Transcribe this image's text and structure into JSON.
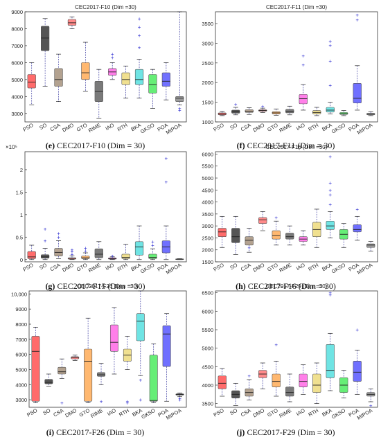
{
  "captions": [
    {
      "tag": "(e)",
      "text": "CEC2017-F10 (Dim = 30)"
    },
    {
      "tag": "(f)",
      "text": "CEC2017-F11 (Dim = 30)"
    },
    {
      "tag": "(g)",
      "text": "CEC2017-F15 (Dim = 30)"
    },
    {
      "tag": "(h)",
      "text": "CEC2017-F16 (Dim = 30)"
    },
    {
      "tag": "(i)",
      "text": "CEC2017-F26 (Dim = 30)"
    },
    {
      "tag": "(j)",
      "text": "CEC2017-F29 (Dim = 30)"
    }
  ],
  "colors": [
    "#ff6b6b",
    "#555555",
    "#b3a290",
    "#ff8a8a",
    "#ffb870",
    "#7a7a7a",
    "#ff7fe9",
    "#f0e090",
    "#6fe4e4",
    "#66ee77",
    "#7070ff",
    "#9a9a9a"
  ],
  "chart_data": [
    {
      "type": "box",
      "title": "CEC2017-F10 (Dim =30)",
      "categories": [
        "PSO",
        "SO",
        "CSA",
        "DMO",
        "GTO",
        "RIME",
        "IAO",
        "RTH",
        "BKA",
        "GKSO",
        "POA",
        "MIPOA"
      ],
      "ylim": [
        2500,
        9000
      ],
      "yticks": [
        3000,
        4000,
        5000,
        6000,
        7000,
        8000,
        9000
      ],
      "ytick_labels": [
        "3000",
        "4000",
        "5000",
        "6000",
        "7000",
        "8000",
        "9000"
      ],
      "boxes": [
        {
          "min": 3500,
          "q1": 4500,
          "median": 4850,
          "q3": 5300,
          "max": 6000,
          "outliers": []
        },
        {
          "min": 4600,
          "q1": 6700,
          "median": 7450,
          "q3": 8150,
          "max": 8600,
          "outliers": []
        },
        {
          "min": 3700,
          "q1": 4600,
          "median": 5000,
          "q3": 5650,
          "max": 6500,
          "outliers": []
        },
        {
          "min": 8000,
          "q1": 8200,
          "median": 8350,
          "q3": 8550,
          "max": 8700,
          "outliers": []
        },
        {
          "min": 4300,
          "q1": 5000,
          "median": 5400,
          "q3": 6000,
          "max": 7200,
          "outliers": []
        },
        {
          "min": 2700,
          "q1": 3700,
          "median": 4300,
          "q3": 4900,
          "max": 5600,
          "outliers": []
        },
        {
          "min": 5000,
          "q1": 5250,
          "median": 5450,
          "q3": 5650,
          "max": 6000,
          "outliers": [
            6300,
            6500
          ]
        },
        {
          "min": 3900,
          "q1": 4700,
          "median": 5000,
          "q3": 5400,
          "max": 5800,
          "outliers": []
        },
        {
          "min": 3900,
          "q1": 4700,
          "median": 5000,
          "q3": 5600,
          "max": 6200,
          "outliers": [
            6900,
            7600,
            8100,
            8600
          ]
        },
        {
          "min": 3300,
          "q1": 4200,
          "median": 4700,
          "q3": 5300,
          "max": 5600,
          "outliers": []
        },
        {
          "min": 3800,
          "q1": 4600,
          "median": 4900,
          "q3": 5400,
          "max": 6000,
          "outliers": []
        },
        {
          "min": 3500,
          "q1": 3700,
          "median": 3900,
          "q3": 4000,
          "max": 9000,
          "outliers": [
            3300,
            3200
          ]
        }
      ]
    },
    {
      "type": "box",
      "title": "CEC2017-F11 (Dim =30)",
      "categories": [
        "PSO",
        "SO",
        "CSA",
        "DMO",
        "GTO",
        "RIME",
        "IAO",
        "RTH",
        "BKA",
        "GKSO",
        "POA",
        "MIPOA"
      ],
      "ylim": [
        1000,
        3800
      ],
      "yticks": [
        1000,
        1500,
        2000,
        2500,
        3000,
        3500
      ],
      "ytick_labels": [
        "1000",
        "1500",
        "2000",
        "2500",
        "3000",
        "3500"
      ],
      "boxes": [
        {
          "min": 1160,
          "q1": 1180,
          "median": 1200,
          "q3": 1230,
          "max": 1270,
          "outliers": []
        },
        {
          "min": 1180,
          "q1": 1220,
          "median": 1260,
          "q3": 1300,
          "max": 1370,
          "outliers": [
            1450
          ]
        },
        {
          "min": 1190,
          "q1": 1240,
          "median": 1270,
          "q3": 1310,
          "max": 1360,
          "outliers": []
        },
        {
          "min": 1240,
          "q1": 1270,
          "median": 1290,
          "q3": 1310,
          "max": 1350,
          "outliers": [
            1400
          ]
        },
        {
          "min": 1170,
          "q1": 1200,
          "median": 1230,
          "q3": 1260,
          "max": 1330,
          "outliers": []
        },
        {
          "min": 1180,
          "q1": 1230,
          "median": 1270,
          "q3": 1320,
          "max": 1400,
          "outliers": []
        },
        {
          "min": 1300,
          "q1": 1460,
          "median": 1590,
          "q3": 1700,
          "max": 1950,
          "outliers": [
            2450,
            2680
          ]
        },
        {
          "min": 1160,
          "q1": 1200,
          "median": 1240,
          "q3": 1290,
          "max": 1370,
          "outliers": []
        },
        {
          "min": 1200,
          "q1": 1250,
          "median": 1300,
          "q3": 1370,
          "max": 1500,
          "outliers": [
            1930,
            2550,
            2950,
            3050
          ]
        },
        {
          "min": 1160,
          "q1": 1190,
          "median": 1210,
          "q3": 1240,
          "max": 1290,
          "outliers": []
        },
        {
          "min": 1300,
          "q1": 1480,
          "median": 1600,
          "q3": 1980,
          "max": 2430,
          "outliers": [
            3600,
            3720
          ]
        },
        {
          "min": 1160,
          "q1": 1180,
          "median": 1200,
          "q3": 1220,
          "max": 1260,
          "outliers": []
        }
      ]
    },
    {
      "type": "box",
      "title": "",
      "exponent_label": "×10⁵",
      "categories": [
        "PSO",
        "SO",
        "CSA",
        "DMO",
        "GTO",
        "RIME",
        "IAO",
        "RTH",
        "BKA",
        "GKSO",
        "POA",
        "MIPOA"
      ],
      "ylim": [
        -0.05,
        2.4
      ],
      "yticks": [
        0,
        0.5,
        1,
        1.5,
        2
      ],
      "ytick_labels": [
        "0",
        "0.5",
        "1",
        "1.5",
        "2"
      ],
      "boxes": [
        {
          "min": 0.0,
          "q1": 0.02,
          "median": 0.06,
          "q3": 0.18,
          "max": 0.32,
          "outliers": []
        },
        {
          "min": 0.0,
          "q1": 0.03,
          "median": 0.06,
          "q3": 0.11,
          "max": 0.25,
          "outliers": [
            0.42,
            0.68
          ]
        },
        {
          "min": 0.02,
          "q1": 0.08,
          "median": 0.16,
          "q3": 0.25,
          "max": 0.42,
          "outliers": [
            0.5,
            0.58
          ]
        },
        {
          "min": 0.0,
          "q1": 0.01,
          "median": 0.03,
          "q3": 0.04,
          "max": 0.08,
          "outliers": [
            0.12,
            0.18,
            0.22
          ]
        },
        {
          "min": 0.0,
          "q1": 0.02,
          "median": 0.04,
          "q3": 0.08,
          "max": 0.15,
          "outliers": [
            0.2,
            0.26
          ]
        },
        {
          "min": 0.0,
          "q1": 0.04,
          "median": 0.12,
          "q3": 0.24,
          "max": 0.4,
          "outliers": []
        },
        {
          "min": 0.0,
          "q1": 0.01,
          "median": 0.02,
          "q3": 0.04,
          "max": 0.06,
          "outliers": [
            0.08
          ]
        },
        {
          "min": 0.0,
          "q1": 0.02,
          "median": 0.05,
          "q3": 0.12,
          "max": 0.34,
          "outliers": []
        },
        {
          "min": 0.0,
          "q1": 0.1,
          "median": 0.28,
          "q3": 0.4,
          "max": 0.75,
          "outliers": []
        },
        {
          "min": 0.0,
          "q1": 0.02,
          "median": 0.05,
          "q3": 0.12,
          "max": 0.24,
          "outliers": [
            0.32,
            0.4
          ]
        },
        {
          "min": 0.0,
          "q1": 0.15,
          "median": 0.28,
          "q3": 0.42,
          "max": 0.75,
          "outliers": [
            1.73,
            2.25
          ]
        },
        {
          "min": 0.0,
          "q1": 0.005,
          "median": 0.01,
          "q3": 0.015,
          "max": 0.02,
          "outliers": []
        }
      ]
    },
    {
      "type": "box",
      "title": "CEC2017-F16 (Dim =30)",
      "categories": [
        "PSO",
        "SO",
        "CSA",
        "DMO",
        "GTO",
        "RIME",
        "IAO",
        "RTH",
        "BKA",
        "GKSO",
        "POA",
        "MIPOA"
      ],
      "ylim": [
        1500,
        6100
      ],
      "yticks": [
        1500,
        2000,
        2500,
        3000,
        3500,
        4000,
        4500,
        5000,
        5500,
        6000
      ],
      "ytick_labels": [
        "1500",
        "2000",
        "2500",
        "3000",
        "3500",
        "4000",
        "4500",
        "5000",
        "5500",
        "6000"
      ],
      "boxes": [
        {
          "min": 2100,
          "q1": 2550,
          "median": 2750,
          "q3": 2900,
          "max": 3400,
          "outliers": []
        },
        {
          "min": 1800,
          "q1": 2300,
          "median": 2550,
          "q3": 2900,
          "max": 3400,
          "outliers": []
        },
        {
          "min": 1900,
          "q1": 2200,
          "median": 2400,
          "q3": 2550,
          "max": 2900,
          "outliers": [
            2100
          ]
        },
        {
          "min": 2800,
          "q1": 3100,
          "median": 3250,
          "q3": 3350,
          "max": 3600,
          "outliers": []
        },
        {
          "min": 2200,
          "q1": 2450,
          "median": 2600,
          "q3": 2800,
          "max": 3200,
          "outliers": [
            3350
          ]
        },
        {
          "min": 2200,
          "q1": 2450,
          "median": 2550,
          "q3": 2700,
          "max": 3000,
          "outliers": []
        },
        {
          "min": 2200,
          "q1": 2350,
          "median": 2450,
          "q3": 2550,
          "max": 2800,
          "outliers": []
        },
        {
          "min": 2100,
          "q1": 2550,
          "median": 2850,
          "q3": 3150,
          "max": 3700,
          "outliers": []
        },
        {
          "min": 2500,
          "q1": 2850,
          "median": 3000,
          "q3": 3200,
          "max": 3600,
          "outliers": [
            3900,
            4300,
            4500,
            4800,
            5900
          ]
        },
        {
          "min": 2100,
          "q1": 2450,
          "median": 2650,
          "q3": 2850,
          "max": 3100,
          "outliers": []
        },
        {
          "min": 2400,
          "q1": 2750,
          "median": 2850,
          "q3": 3050,
          "max": 3400,
          "outliers": [
            3700
          ]
        },
        {
          "min": 1950,
          "q1": 2100,
          "median": 2200,
          "q3": 2250,
          "max": 2350,
          "outliers": []
        }
      ]
    },
    {
      "type": "box",
      "title": "CEC2017-F26 (Dim =30)",
      "categories": [
        "PSO",
        "SO",
        "CSA",
        "DMO",
        "GTO",
        "RIME",
        "IAO",
        "RTH",
        "BKA",
        "GKSO",
        "POA",
        "MIPOA"
      ],
      "ylim": [
        2500,
        10200
      ],
      "yticks": [
        3000,
        4000,
        5000,
        6000,
        7000,
        8000,
        9000,
        10000
      ],
      "ytick_labels": [
        "3000",
        "4000",
        "5000",
        "6000",
        "7000",
        "8000",
        "9000",
        "10,000"
      ],
      "boxes": [
        {
          "min": 2800,
          "q1": 2900,
          "median": 6200,
          "q3": 7200,
          "max": 7800,
          "outliers": []
        },
        {
          "min": 3900,
          "q1": 4050,
          "median": 4150,
          "q3": 4350,
          "max": 4700,
          "outliers": []
        },
        {
          "min": 4400,
          "q1": 4700,
          "median": 4850,
          "q3": 5150,
          "max": 5700,
          "outliers": [
            2800
          ]
        },
        {
          "min": 5600,
          "q1": 5700,
          "median": 5800,
          "q3": 5850,
          "max": 5950,
          "outliers": []
        },
        {
          "min": 2800,
          "q1": 2900,
          "median": 5550,
          "q3": 6350,
          "max": 8400,
          "outliers": []
        },
        {
          "min": 4000,
          "q1": 4550,
          "median": 4650,
          "q3": 4800,
          "max": 5400,
          "outliers": [
            2900
          ]
        },
        {
          "min": 4700,
          "q1": 6200,
          "median": 6800,
          "q3": 7950,
          "max": 9100,
          "outliers": []
        },
        {
          "min": 5000,
          "q1": 5550,
          "median": 5950,
          "q3": 6350,
          "max": 7200,
          "outliers": [
            2800,
            2900
          ]
        },
        {
          "min": 4600,
          "q1": 6900,
          "median": 8200,
          "q3": 8700,
          "max": 10200,
          "outliers": [
            4300,
            3000
          ]
        },
        {
          "min": 2800,
          "q1": 2900,
          "median": 2950,
          "q3": 5950,
          "max": 6700,
          "outliers": []
        },
        {
          "min": 2900,
          "q1": 5200,
          "median": 7350,
          "q3": 7900,
          "max": 8700,
          "outliers": []
        },
        {
          "min": 3200,
          "q1": 3300,
          "median": 3350,
          "q3": 3400,
          "max": 3450,
          "outliers": [
            3000,
            3100
          ]
        }
      ]
    },
    {
      "type": "box",
      "title": "CEC2017-F29 (Dim =30)",
      "categories": [
        "PSO",
        "SO",
        "CSA",
        "DMO",
        "GTO",
        "RIME",
        "IAO",
        "RTH",
        "BKA",
        "GKSO",
        "POA",
        "MIPOA"
      ],
      "ylim": [
        3400,
        6550
      ],
      "yticks": [
        3500,
        4000,
        4500,
        5000,
        5500,
        6000,
        6500
      ],
      "ytick_labels": [
        "3500",
        "4000",
        "4500",
        "5000",
        "5500",
        "6000",
        "6500"
      ],
      "boxes": [
        {
          "min": 3700,
          "q1": 3900,
          "median": 4050,
          "q3": 4250,
          "max": 4450,
          "outliers": []
        },
        {
          "min": 3450,
          "q1": 3650,
          "median": 3750,
          "q3": 3850,
          "max": 4050,
          "outliers": []
        },
        {
          "min": 3600,
          "q1": 3700,
          "median": 3800,
          "q3": 3900,
          "max": 4150,
          "outliers": [
            4250
          ]
        },
        {
          "min": 3900,
          "q1": 4200,
          "median": 4300,
          "q3": 4400,
          "max": 4600,
          "outliers": []
        },
        {
          "min": 3700,
          "q1": 3950,
          "median": 4100,
          "q3": 4300,
          "max": 4650,
          "outliers": [
            5100
          ]
        },
        {
          "min": 3550,
          "q1": 3700,
          "median": 3800,
          "q3": 3950,
          "max": 4300,
          "outliers": []
        },
        {
          "min": 3750,
          "q1": 3950,
          "median": 4100,
          "q3": 4300,
          "max": 4550,
          "outliers": []
        },
        {
          "min": 3500,
          "q1": 3800,
          "median": 4000,
          "q3": 4300,
          "max": 4600,
          "outliers": []
        },
        {
          "min": 3850,
          "q1": 4200,
          "median": 4400,
          "q3": 5100,
          "max": 5400,
          "outliers": [
            6450,
            6500
          ]
        },
        {
          "min": 3650,
          "q1": 3800,
          "median": 4000,
          "q3": 4200,
          "max": 4400,
          "outliers": []
        },
        {
          "min": 3750,
          "q1": 4100,
          "median": 4350,
          "q3": 4650,
          "max": 4950,
          "outliers": [
            5500
          ]
        },
        {
          "min": 3550,
          "q1": 3700,
          "median": 3750,
          "q3": 3800,
          "max": 3900,
          "outliers": [
            3450
          ]
        }
      ]
    }
  ]
}
